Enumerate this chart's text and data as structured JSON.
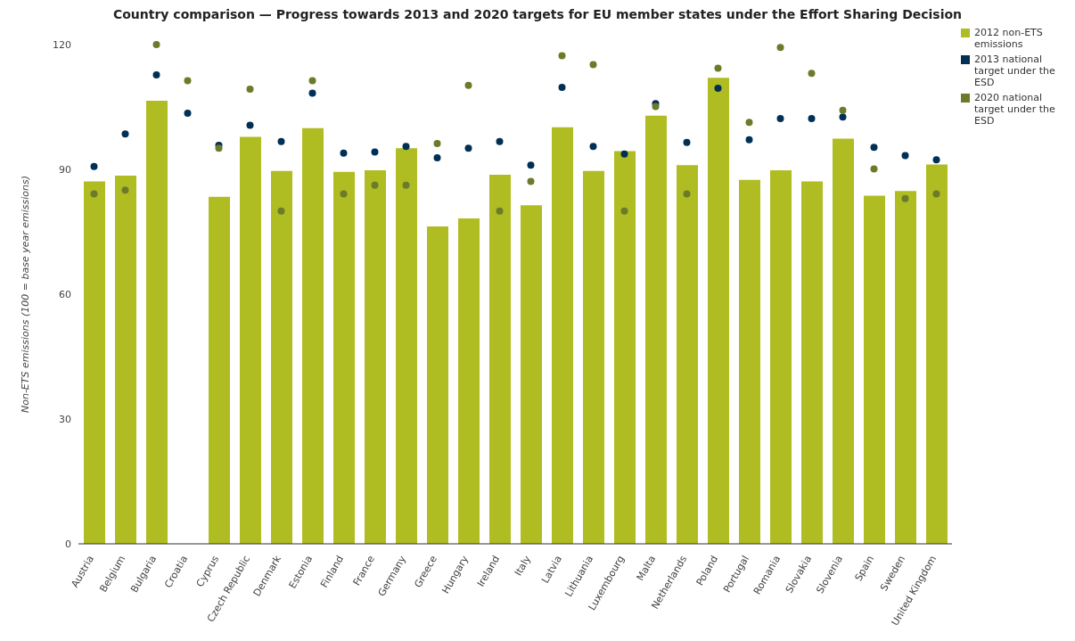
{
  "chart_data": {
    "type": "bar",
    "title": "Country comparison — Progress towards 2013 and 2020 targets for EU member states under the Effort Sharing Decision",
    "ylabel": "Non-ETS emissions (100 = base year emissions)",
    "categories": [
      "Austria",
      "Belgium",
      "Bulgaria",
      "Croatia",
      "Cyprus",
      "Czech Republic",
      "Denmark",
      "Estonia",
      "Finland",
      "France",
      "Germany",
      "Greece",
      "Hungary",
      "Ireland",
      "Italy",
      "Latvia",
      "Lithuania",
      "Luxembourg",
      "Malta",
      "Netherlands",
      "Poland",
      "Portugal",
      "Romania",
      "Slovakia",
      "Slovenia",
      "Spain",
      "Sweden",
      "United Kingdom"
    ],
    "series": [
      {
        "name": "2012 non-ETS emissions",
        "color": "#afbd22",
        "values": [
          87.1,
          88.5,
          106.5,
          null,
          83.4,
          97.8,
          89.6,
          99.9,
          89.4,
          89.8,
          95.1,
          76.3,
          78.2,
          88.7,
          81.4,
          100.1,
          89.6,
          94.4,
          102.9,
          91.0,
          112.0,
          87.5,
          89.8,
          87.1,
          97.4,
          83.7,
          84.8,
          91.2
        ]
      },
      {
        "name": "2013 national target under the ESD",
        "type": "scatter",
        "color": "#003056",
        "values": [
          90.7,
          98.5,
          112.7,
          103.5,
          95.8,
          100.6,
          96.7,
          108.3,
          93.9,
          94.2,
          95.5,
          92.8,
          95.1,
          96.7,
          91.0,
          109.7,
          95.5,
          93.7,
          105.8,
          96.5,
          109.5,
          97.1,
          102.2,
          102.2,
          102.6,
          95.3,
          93.3,
          92.3
        ]
      },
      {
        "name": "2020 national target under the ESD",
        "type": "scatter",
        "color": "#6b7b2a",
        "values": [
          84.1,
          85.0,
          120.0,
          111.3,
          95.1,
          109.3,
          80.0,
          111.3,
          84.1,
          86.2,
          86.2,
          96.2,
          110.2,
          80.0,
          87.1,
          117.3,
          115.2,
          80.0,
          105.1,
          84.1,
          114.3,
          101.3,
          119.3,
          113.1,
          104.2,
          90.1,
          83.0,
          84.1
        ]
      }
    ],
    "ylim": [
      0,
      120
    ],
    "yticks": [
      0,
      30,
      60,
      90,
      120
    ],
    "legend": "top right",
    "marker": "circle"
  }
}
